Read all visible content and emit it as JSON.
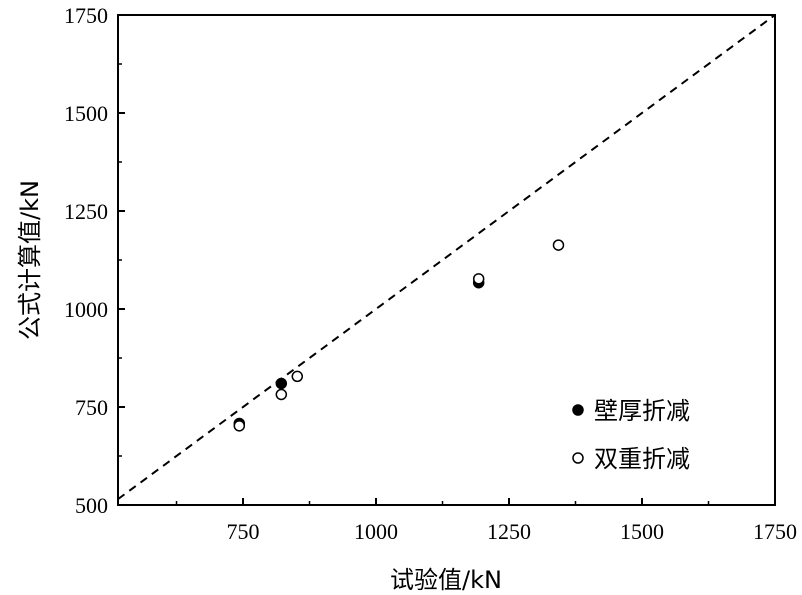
{
  "chart_data": {
    "type": "scatter",
    "xlabel": "试验值/kN",
    "ylabel": "公式计算值/kN",
    "xlim": [
      515,
      1750
    ],
    "ylim": [
      500,
      1750
    ],
    "xticks": [
      750,
      1000,
      1250,
      1500,
      1750
    ],
    "yticks": [
      500,
      750,
      1000,
      1250,
      1500,
      1750
    ],
    "x_tick_labels": [
      "750",
      "1000",
      "1250",
      "1500",
      "1750"
    ],
    "y_tick_labels": [
      "500",
      "750",
      "1000",
      "1250",
      "1500",
      "1750"
    ],
    "reference_line": {
      "style": "dashed",
      "x": [
        515,
        1750
      ],
      "y": [
        515,
        1750
      ]
    },
    "legend_position": "bottom-right",
    "grid": false,
    "series": [
      {
        "name": "壁厚折减",
        "marker": "filled-circle",
        "points": [
          {
            "x": 743,
            "y": 708
          },
          {
            "x": 822,
            "y": 810
          },
          {
            "x": 1193,
            "y": 1067
          }
        ]
      },
      {
        "name": "双重折减",
        "marker": "open-circle",
        "points": [
          {
            "x": 743,
            "y": 702
          },
          {
            "x": 822,
            "y": 782
          },
          {
            "x": 852,
            "y": 828
          },
          {
            "x": 1193,
            "y": 1077
          },
          {
            "x": 1343,
            "y": 1163
          }
        ]
      }
    ]
  }
}
